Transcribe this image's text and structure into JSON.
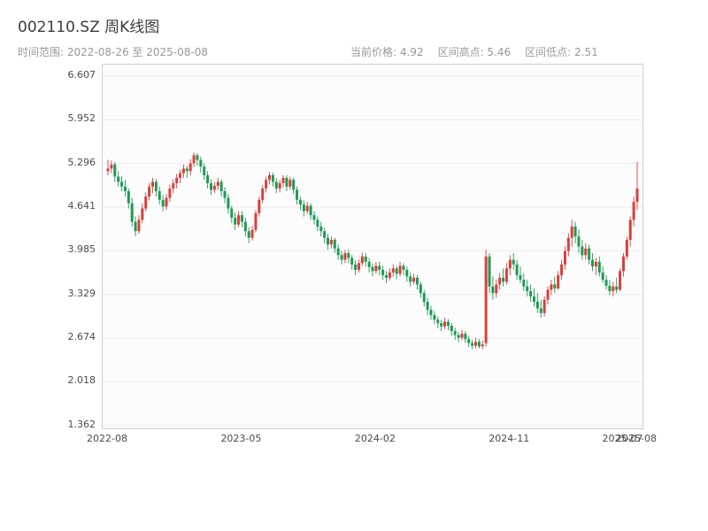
{
  "header": {
    "title": "002110.SZ 周K线图",
    "subtitle": "时间范围: 2022-08-26 至 2025-08-08",
    "stats": [
      "当前价格: 4.92",
      "区间高点: 5.46",
      "区间低点: 2.51"
    ]
  },
  "chart_data": {
    "type": "candlestick",
    "title": "002110.SZ 周K线图",
    "frequency": "weekly",
    "symbol": "002110.SZ",
    "date_range": {
      "start": "2022-08-26",
      "end": "2025-08-08"
    },
    "current_price": 4.92,
    "range_high": 5.46,
    "range_low": 2.51,
    "ylim": [
      1.32,
      6.78
    ],
    "grid": "horizontal",
    "y_ticks": [
      "6.607",
      "5.952",
      "5.296",
      "4.641",
      "3.985",
      "3.329",
      "2.674",
      "2.018",
      "1.362"
    ],
    "x_ticks": [
      {
        "label": "2022-08",
        "index": 0
      },
      {
        "label": "2023-05",
        "index": 39
      },
      {
        "label": "2024-02",
        "index": 78
      },
      {
        "label": "2024-11",
        "index": 117
      },
      {
        "label": "2025-07",
        "index": 150
      },
      {
        "label": "2025-08",
        "index": 154
      }
    ],
    "colors": {
      "up": "#d8403a",
      "down": "#1e9a55",
      "grid": "#ebebeb",
      "frame": "#cfcfcf",
      "plot_bg": "#fcfcfd"
    },
    "candles": [
      [
        5.18,
        5.35,
        5.12,
        5.22
      ],
      [
        5.22,
        5.34,
        5.15,
        5.28
      ],
      [
        5.28,
        5.32,
        5.02,
        5.1
      ],
      [
        5.1,
        5.18,
        4.95,
        5.02
      ],
      [
        5.02,
        5.1,
        4.88,
        4.95
      ],
      [
        4.95,
        5.05,
        4.8,
        4.88
      ],
      [
        4.88,
        4.92,
        4.62,
        4.7
      ],
      [
        4.7,
        4.78,
        4.35,
        4.42
      ],
      [
        4.42,
        4.5,
        4.2,
        4.28
      ],
      [
        4.28,
        4.52,
        4.24,
        4.45
      ],
      [
        4.45,
        4.7,
        4.4,
        4.62
      ],
      [
        4.62,
        4.86,
        4.58,
        4.8
      ],
      [
        4.8,
        5.0,
        4.74,
        4.95
      ],
      [
        4.95,
        5.08,
        4.85,
        5.02
      ],
      [
        5.02,
        5.06,
        4.8,
        4.88
      ],
      [
        4.88,
        4.95,
        4.68,
        4.75
      ],
      [
        4.75,
        4.82,
        4.58,
        4.65
      ],
      [
        4.65,
        4.84,
        4.6,
        4.78
      ],
      [
        4.78,
        4.98,
        4.72,
        4.92
      ],
      [
        4.92,
        5.06,
        4.85,
        5.0
      ],
      [
        5.0,
        5.14,
        4.92,
        5.08
      ],
      [
        5.08,
        5.2,
        5.0,
        5.15
      ],
      [
        5.15,
        5.28,
        5.08,
        5.22
      ],
      [
        5.22,
        5.26,
        5.08,
        5.18
      ],
      [
        5.18,
        5.36,
        5.12,
        5.3
      ],
      [
        5.3,
        5.46,
        5.24,
        5.42
      ],
      [
        5.42,
        5.45,
        5.26,
        5.35
      ],
      [
        5.35,
        5.4,
        5.16,
        5.25
      ],
      [
        5.25,
        5.3,
        5.05,
        5.12
      ],
      [
        5.12,
        5.18,
        4.92,
        5.0
      ],
      [
        5.0,
        5.06,
        4.82,
        4.9
      ],
      [
        4.9,
        5.02,
        4.85,
        4.96
      ],
      [
        4.96,
        5.08,
        4.9,
        5.02
      ],
      [
        5.02,
        5.06,
        4.8,
        4.88
      ],
      [
        4.88,
        4.94,
        4.7,
        4.78
      ],
      [
        4.78,
        4.84,
        4.54,
        4.62
      ],
      [
        4.62,
        4.66,
        4.4,
        4.48
      ],
      [
        4.48,
        4.56,
        4.3,
        4.38
      ],
      [
        4.38,
        4.58,
        4.34,
        4.52
      ],
      [
        4.52,
        4.58,
        4.34,
        4.42
      ],
      [
        4.42,
        4.48,
        4.2,
        4.28
      ],
      [
        4.28,
        4.34,
        4.1,
        4.18
      ],
      [
        4.18,
        4.36,
        4.14,
        4.3
      ],
      [
        4.3,
        4.6,
        4.26,
        4.55
      ],
      [
        4.55,
        4.8,
        4.5,
        4.75
      ],
      [
        4.75,
        4.97,
        4.7,
        4.92
      ],
      [
        4.92,
        5.1,
        4.86,
        5.05
      ],
      [
        5.05,
        5.17,
        4.98,
        5.12
      ],
      [
        5.12,
        5.16,
        4.95,
        5.02
      ],
      [
        5.02,
        5.08,
        4.85,
        4.92
      ],
      [
        4.92,
        5.05,
        4.86,
        5.0
      ],
      [
        5.0,
        5.12,
        4.94,
        5.08
      ],
      [
        5.08,
        5.12,
        4.88,
        4.95
      ],
      [
        4.95,
        5.1,
        4.9,
        5.05
      ],
      [
        5.05,
        5.08,
        4.84,
        4.9
      ],
      [
        4.9,
        4.95,
        4.68,
        4.75
      ],
      [
        4.75,
        4.8,
        4.6,
        4.68
      ],
      [
        4.68,
        4.74,
        4.5,
        4.58
      ],
      [
        4.58,
        4.72,
        4.54,
        4.66
      ],
      [
        4.66,
        4.7,
        4.45,
        4.52
      ],
      [
        4.52,
        4.58,
        4.38,
        4.45
      ],
      [
        4.45,
        4.5,
        4.28,
        4.35
      ],
      [
        4.35,
        4.42,
        4.2,
        4.28
      ],
      [
        4.28,
        4.33,
        4.1,
        4.18
      ],
      [
        4.18,
        4.24,
        4.0,
        4.08
      ],
      [
        4.08,
        4.2,
        4.02,
        4.15
      ],
      [
        4.15,
        4.18,
        3.95,
        4.02
      ],
      [
        4.02,
        4.08,
        3.85,
        3.92
      ],
      [
        3.92,
        3.98,
        3.78,
        3.85
      ],
      [
        3.85,
        4.0,
        3.8,
        3.95
      ],
      [
        3.95,
        4.0,
        3.8,
        3.88
      ],
      [
        3.88,
        3.92,
        3.7,
        3.78
      ],
      [
        3.78,
        3.84,
        3.62,
        3.7
      ],
      [
        3.7,
        3.85,
        3.66,
        3.8
      ],
      [
        3.8,
        3.96,
        3.76,
        3.9
      ],
      [
        3.9,
        3.95,
        3.75,
        3.82
      ],
      [
        3.82,
        3.88,
        3.66,
        3.74
      ],
      [
        3.74,
        3.8,
        3.6,
        3.68
      ],
      [
        3.68,
        3.82,
        3.64,
        3.76
      ],
      [
        3.76,
        3.82,
        3.62,
        3.7
      ],
      [
        3.7,
        3.76,
        3.55,
        3.62
      ],
      [
        3.62,
        3.68,
        3.5,
        3.58
      ],
      [
        3.58,
        3.72,
        3.54,
        3.66
      ],
      [
        3.66,
        3.78,
        3.6,
        3.72
      ],
      [
        3.72,
        3.76,
        3.56,
        3.64
      ],
      [
        3.64,
        3.82,
        3.6,
        3.76
      ],
      [
        3.76,
        3.8,
        3.62,
        3.7
      ],
      [
        3.7,
        3.75,
        3.52,
        3.6
      ],
      [
        3.6,
        3.66,
        3.45,
        3.52
      ],
      [
        3.52,
        3.64,
        3.48,
        3.58
      ],
      [
        3.58,
        3.62,
        3.4,
        3.48
      ],
      [
        3.48,
        3.52,
        3.28,
        3.35
      ],
      [
        3.35,
        3.4,
        3.15,
        3.22
      ],
      [
        3.22,
        3.28,
        3.02,
        3.1
      ],
      [
        3.1,
        3.16,
        2.95,
        3.02
      ],
      [
        3.02,
        3.08,
        2.88,
        2.95
      ],
      [
        2.95,
        3.0,
        2.82,
        2.9
      ],
      [
        2.9,
        2.95,
        2.78,
        2.85
      ],
      [
        2.85,
        2.98,
        2.81,
        2.92
      ],
      [
        2.92,
        2.96,
        2.79,
        2.86
      ],
      [
        2.86,
        2.9,
        2.71,
        2.78
      ],
      [
        2.78,
        2.83,
        2.65,
        2.72
      ],
      [
        2.72,
        2.77,
        2.61,
        2.68
      ],
      [
        2.68,
        2.8,
        2.64,
        2.74
      ],
      [
        2.74,
        2.78,
        2.6,
        2.66
      ],
      [
        2.66,
        2.71,
        2.54,
        2.6
      ],
      [
        2.6,
        2.65,
        2.51,
        2.56
      ],
      [
        2.56,
        2.68,
        2.52,
        2.62
      ],
      [
        2.62,
        2.66,
        2.52,
        2.55
      ],
      [
        2.55,
        2.64,
        2.51,
        2.58
      ],
      [
        2.6,
        4.0,
        2.55,
        3.9
      ],
      [
        3.9,
        3.95,
        3.35,
        3.45
      ],
      [
        3.45,
        3.6,
        3.25,
        3.35
      ],
      [
        3.35,
        3.55,
        3.28,
        3.48
      ],
      [
        3.48,
        3.65,
        3.4,
        3.58
      ],
      [
        3.58,
        3.72,
        3.45,
        3.52
      ],
      [
        3.52,
        3.8,
        3.48,
        3.72
      ],
      [
        3.72,
        3.92,
        3.62,
        3.85
      ],
      [
        3.85,
        3.95,
        3.7,
        3.78
      ],
      [
        3.78,
        3.85,
        3.55,
        3.62
      ],
      [
        3.62,
        3.75,
        3.5,
        3.55
      ],
      [
        3.55,
        3.65,
        3.38,
        3.45
      ],
      [
        3.45,
        3.55,
        3.3,
        3.38
      ],
      [
        3.38,
        3.48,
        3.22,
        3.3
      ],
      [
        3.3,
        3.42,
        3.15,
        3.22
      ],
      [
        3.22,
        3.35,
        3.05,
        3.12
      ],
      [
        3.12,
        3.25,
        2.98,
        3.05
      ],
      [
        3.05,
        3.3,
        3.0,
        3.25
      ],
      [
        3.25,
        3.45,
        3.18,
        3.4
      ],
      [
        3.4,
        3.55,
        3.32,
        3.48
      ],
      [
        3.48,
        3.6,
        3.35,
        3.42
      ],
      [
        3.42,
        3.68,
        3.4,
        3.62
      ],
      [
        3.62,
        3.85,
        3.55,
        3.78
      ],
      [
        3.78,
        4.05,
        3.7,
        3.98
      ],
      [
        3.98,
        4.25,
        3.9,
        4.18
      ],
      [
        4.18,
        4.45,
        4.05,
        4.35
      ],
      [
        4.35,
        4.42,
        4.1,
        4.2
      ],
      [
        4.2,
        4.3,
        3.95,
        4.05
      ],
      [
        4.05,
        4.15,
        3.85,
        3.92
      ],
      [
        3.92,
        4.1,
        3.85,
        4.02
      ],
      [
        4.02,
        4.08,
        3.78,
        3.85
      ],
      [
        3.85,
        3.95,
        3.68,
        3.75
      ],
      [
        3.75,
        3.88,
        3.62,
        3.82
      ],
      [
        3.82,
        3.9,
        3.6,
        3.66
      ],
      [
        3.66,
        3.75,
        3.5,
        3.55
      ],
      [
        3.55,
        3.62,
        3.4,
        3.46
      ],
      [
        3.46,
        3.55,
        3.32,
        3.38
      ],
      [
        3.38,
        3.52,
        3.3,
        3.45
      ],
      [
        3.45,
        3.58,
        3.35,
        3.4
      ],
      [
        3.4,
        3.72,
        3.38,
        3.68
      ],
      [
        3.68,
        3.95,
        3.6,
        3.9
      ],
      [
        3.9,
        4.2,
        3.85,
        4.15
      ],
      [
        4.15,
        4.5,
        4.05,
        4.45
      ],
      [
        4.45,
        4.8,
        4.35,
        4.72
      ],
      [
        4.72,
        5.32,
        4.6,
        4.92
      ]
    ]
  }
}
